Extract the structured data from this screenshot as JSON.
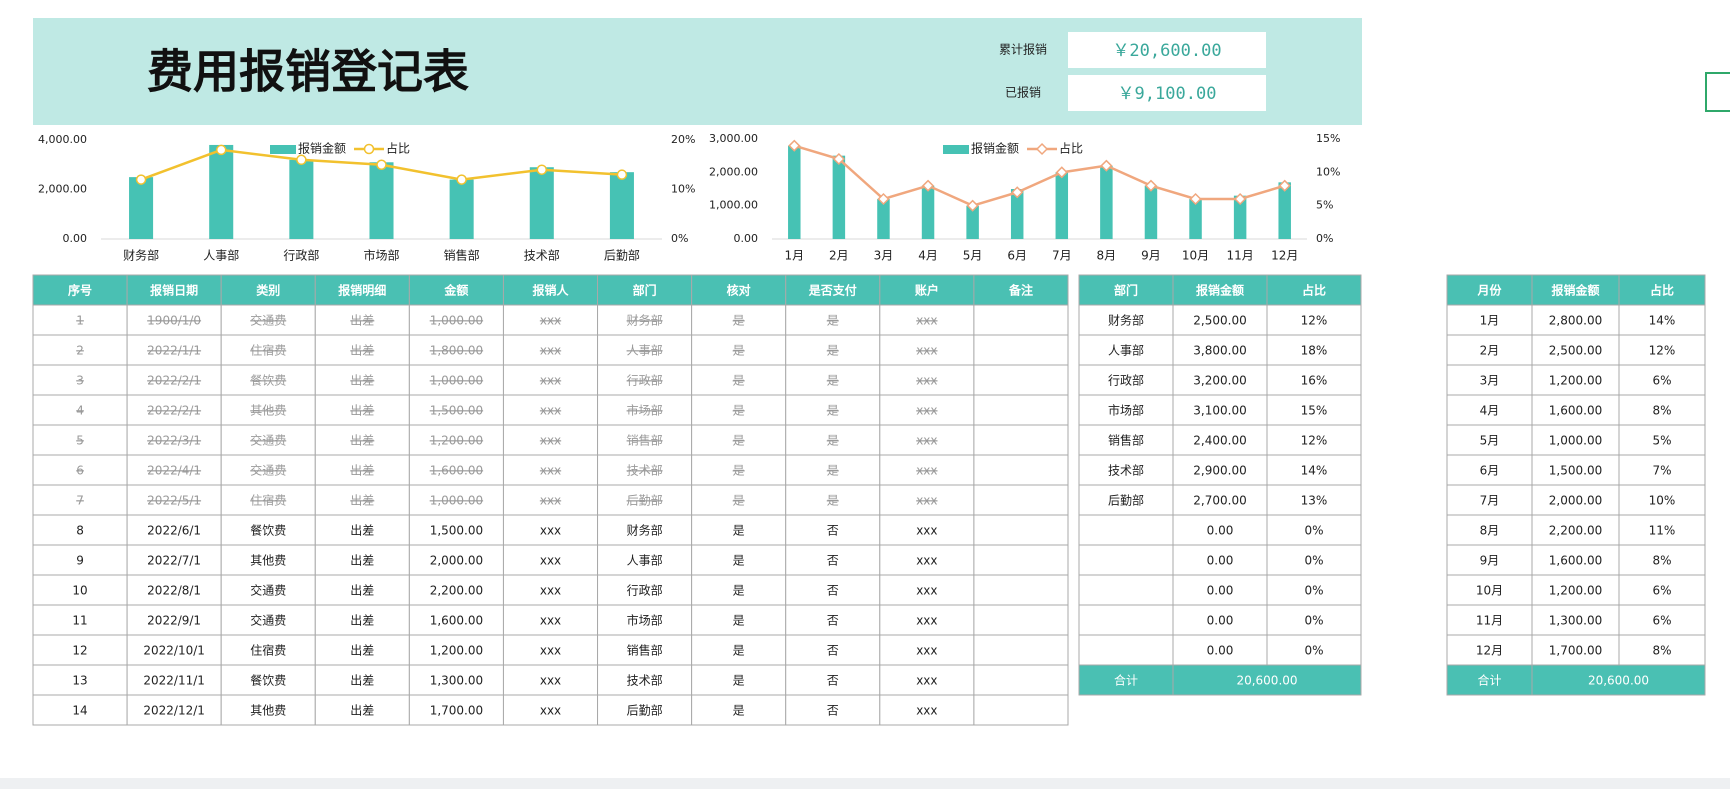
{
  "header": {
    "title": "费用报销登记表",
    "total_label": "累计报销",
    "total_value": "￥20,600.00",
    "paid_label": "已报销",
    "paid_value": "￥9,100.00"
  },
  "chart_data": [
    {
      "type": "bar",
      "categories": [
        "财务部",
        "人事部",
        "行政部",
        "市场部",
        "销售部",
        "技术部",
        "后勤部"
      ],
      "series": [
        {
          "name": "报销金额",
          "color": "#46c2b4",
          "values": [
            2500,
            3800,
            3200,
            3100,
            2400,
            2900,
            2700
          ]
        },
        {
          "name": "占比",
          "type": "line",
          "axis": "y2",
          "marker": "circle",
          "color": "#f2c12e",
          "values": [
            12,
            18,
            16,
            15,
            12,
            14,
            13
          ]
        }
      ],
      "ylim": [
        0,
        4000
      ],
      "yticks": [
        {
          "value": 0,
          "label": "0.00"
        },
        {
          "value": 2000,
          "label": "2,000.00"
        },
        {
          "value": 4000,
          "label": "4,000.00"
        }
      ],
      "y2lim": [
        0,
        20
      ],
      "y2ticks": [
        {
          "value": 0,
          "label": "0%"
        },
        {
          "value": 10,
          "label": "10%"
        },
        {
          "value": 20,
          "label": "20%"
        }
      ],
      "grid": false,
      "legend": "top"
    },
    {
      "type": "bar",
      "categories": [
        "1月",
        "2月",
        "3月",
        "4月",
        "5月",
        "6月",
        "7月",
        "8月",
        "9月",
        "10月",
        "11月",
        "12月"
      ],
      "series": [
        {
          "name": "报销金额",
          "color": "#46c2b4",
          "values": [
            2800,
            2500,
            1200,
            1600,
            1000,
            1500,
            2000,
            2200,
            1600,
            1200,
            1300,
            1700
          ]
        },
        {
          "name": "占比",
          "type": "line",
          "axis": "y2",
          "marker": "diamond",
          "color": "#f0a77e",
          "values": [
            14,
            12,
            6,
            8,
            5,
            7,
            10,
            11,
            8,
            6,
            6,
            8
          ]
        }
      ],
      "ylim": [
        0,
        3000
      ],
      "yticks": [
        {
          "value": 0,
          "label": "0.00"
        },
        {
          "value": 1000,
          "label": "1,000.00"
        },
        {
          "value": 2000,
          "label": "2,000.00"
        },
        {
          "value": 3000,
          "label": "3,000.00"
        }
      ],
      "y2lim": [
        0,
        15
      ],
      "y2ticks": [
        {
          "value": 0,
          "label": "0%"
        },
        {
          "value": 5,
          "label": "5%"
        },
        {
          "value": 10,
          "label": "10%"
        },
        {
          "value": 15,
          "label": "15%"
        }
      ],
      "grid": false,
      "legend": "top"
    }
  ],
  "table": {
    "columns": [
      "序号",
      "报销日期",
      "类别",
      "报销明细",
      "金额",
      "报销人",
      "部门",
      "核对",
      "是否支付",
      "账户",
      "备注"
    ],
    "rows": [
      {
        "struck": true,
        "cells": [
          "1",
          "1900/1/0",
          "交通费",
          "出差",
          "1,000.00",
          "xxx",
          "财务部",
          "是",
          "是",
          "xxx"
        ]
      },
      {
        "struck": true,
        "cells": [
          "2",
          "2022/1/1",
          "住宿费",
          "出差",
          "1,800.00",
          "xxx",
          "人事部",
          "是",
          "是",
          "xxx"
        ]
      },
      {
        "struck": true,
        "cells": [
          "3",
          "2022/2/1",
          "餐饮费",
          "出差",
          "1,000.00",
          "xxx",
          "行政部",
          "是",
          "是",
          "xxx"
        ]
      },
      {
        "struck": true,
        "cells": [
          "4",
          "2022/2/1",
          "其他费",
          "出差",
          "1,500.00",
          "xxx",
          "市场部",
          "是",
          "是",
          "xxx"
        ]
      },
      {
        "struck": true,
        "cells": [
          "5",
          "2022/3/1",
          "交通费",
          "出差",
          "1,200.00",
          "xxx",
          "销售部",
          "是",
          "是",
          "xxx"
        ]
      },
      {
        "struck": true,
        "cells": [
          "6",
          "2022/4/1",
          "交通费",
          "出差",
          "1,600.00",
          "xxx",
          "技术部",
          "是",
          "是",
          "xxx"
        ]
      },
      {
        "struck": true,
        "cells": [
          "7",
          "2022/5/1",
          "住宿费",
          "出差",
          "1,000.00",
          "xxx",
          "后勤部",
          "是",
          "是",
          "xxx"
        ]
      },
      {
        "struck": false,
        "cells": [
          "8",
          "2022/6/1",
          "餐饮费",
          "出差",
          "1,500.00",
          "xxx",
          "财务部",
          "是",
          "否",
          "xxx"
        ]
      },
      {
        "struck": false,
        "cells": [
          "9",
          "2022/7/1",
          "其他费",
          "出差",
          "2,000.00",
          "xxx",
          "人事部",
          "是",
          "否",
          "xxx"
        ]
      },
      {
        "struck": false,
        "cells": [
          "10",
          "2022/8/1",
          "交通费",
          "出差",
          "2,200.00",
          "xxx",
          "行政部",
          "是",
          "否",
          "xxx"
        ]
      },
      {
        "struck": false,
        "cells": [
          "11",
          "2022/9/1",
          "交通费",
          "出差",
          "1,600.00",
          "xxx",
          "市场部",
          "是",
          "否",
          "xxx"
        ]
      },
      {
        "struck": false,
        "cells": [
          "12",
          "2022/10/1",
          "住宿费",
          "出差",
          "1,200.00",
          "xxx",
          "销售部",
          "是",
          "否",
          "xxx"
        ]
      },
      {
        "struck": false,
        "cells": [
          "13",
          "2022/11/1",
          "餐饮费",
          "出差",
          "1,300.00",
          "xxx",
          "技术部",
          "是",
          "否",
          "xxx"
        ]
      },
      {
        "struck": false,
        "cells": [
          "14",
          "2022/12/1",
          "其他费",
          "出差",
          "1,700.00",
          "xxx",
          "后勤部",
          "是",
          "否",
          "xxx"
        ]
      }
    ]
  },
  "dept_table": {
    "columns": [
      "部门",
      "报销金额",
      "占比"
    ],
    "rows": [
      {
        "dept": "财务部",
        "amount": "2,500.00",
        "share": "12%"
      },
      {
        "dept": "人事部",
        "amount": "3,800.00",
        "share": "18%"
      },
      {
        "dept": "行政部",
        "amount": "3,200.00",
        "share": "16%"
      },
      {
        "dept": "市场部",
        "amount": "3,100.00",
        "share": "15%"
      },
      {
        "dept": "销售部",
        "amount": "2,400.00",
        "share": "12%"
      },
      {
        "dept": "技术部",
        "amount": "2,900.00",
        "share": "14%"
      },
      {
        "dept": "后勤部",
        "amount": "2,700.00",
        "share": "13%"
      },
      {
        "amount": "0.00",
        "share": "0%"
      },
      {
        "amount": "0.00",
        "share": "0%"
      },
      {
        "amount": "0.00",
        "share": "0%"
      },
      {
        "amount": "0.00",
        "share": "0%"
      },
      {
        "amount": "0.00",
        "share": "0%"
      }
    ],
    "total": {
      "label": "合计",
      "amount": "20,600.00"
    }
  },
  "month_table": {
    "columns": [
      "月份",
      "报销金额",
      "占比"
    ],
    "rows": [
      {
        "month": "1月",
        "amount": "2,800.00",
        "share": "14%"
      },
      {
        "month": "2月",
        "amount": "2,500.00",
        "share": "12%"
      },
      {
        "month": "3月",
        "amount": "1,200.00",
        "share": "6%"
      },
      {
        "month": "4月",
        "amount": "1,600.00",
        "share": "8%"
      },
      {
        "month": "5月",
        "amount": "1,000.00",
        "share": "5%"
      },
      {
        "month": "6月",
        "amount": "1,500.00",
        "share": "7%"
      },
      {
        "month": "7月",
        "amount": "2,000.00",
        "share": "10%"
      },
      {
        "month": "8月",
        "amount": "2,200.00",
        "share": "11%"
      },
      {
        "month": "9月",
        "amount": "1,600.00",
        "share": "8%"
      },
      {
        "month": "10月",
        "amount": "1,200.00",
        "share": "6%"
      },
      {
        "month": "11月",
        "amount": "1,300.00",
        "share": "6%"
      },
      {
        "month": "12月",
        "amount": "1,700.00",
        "share": "8%"
      }
    ],
    "total": {
      "label": "合计",
      "amount": "20,600.00"
    }
  }
}
